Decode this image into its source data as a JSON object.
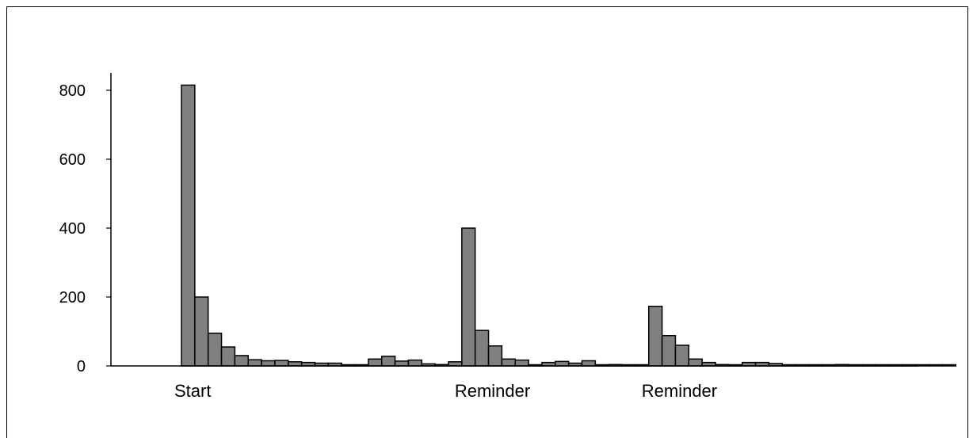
{
  "chart_data": {
    "type": "bar",
    "title": "",
    "xlabel": "",
    "ylabel": "",
    "ylim": [
      0,
      800
    ],
    "yticks": [
      "0",
      "200",
      "400",
      "600",
      "800"
    ],
    "grid": false,
    "bar_color": "#808080",
    "event_labels": [
      {
        "text": "Start",
        "bar_index": 0
      },
      {
        "text": "Reminder",
        "bar_index": 21
      },
      {
        "text": "Reminder",
        "bar_index": 35
      }
    ],
    "values": [
      815,
      200,
      95,
      55,
      30,
      18,
      15,
      16,
      12,
      10,
      8,
      8,
      3,
      2,
      20,
      28,
      14,
      17,
      6,
      4,
      12,
      400,
      103,
      58,
      20,
      17,
      3,
      10,
      13,
      8,
      15,
      1,
      4,
      1,
      0,
      173,
      88,
      60,
      20,
      10,
      4,
      3,
      10,
      10,
      7,
      2,
      3,
      2,
      1,
      4,
      3,
      1,
      1,
      1,
      1,
      1,
      1,
      0
    ]
  }
}
